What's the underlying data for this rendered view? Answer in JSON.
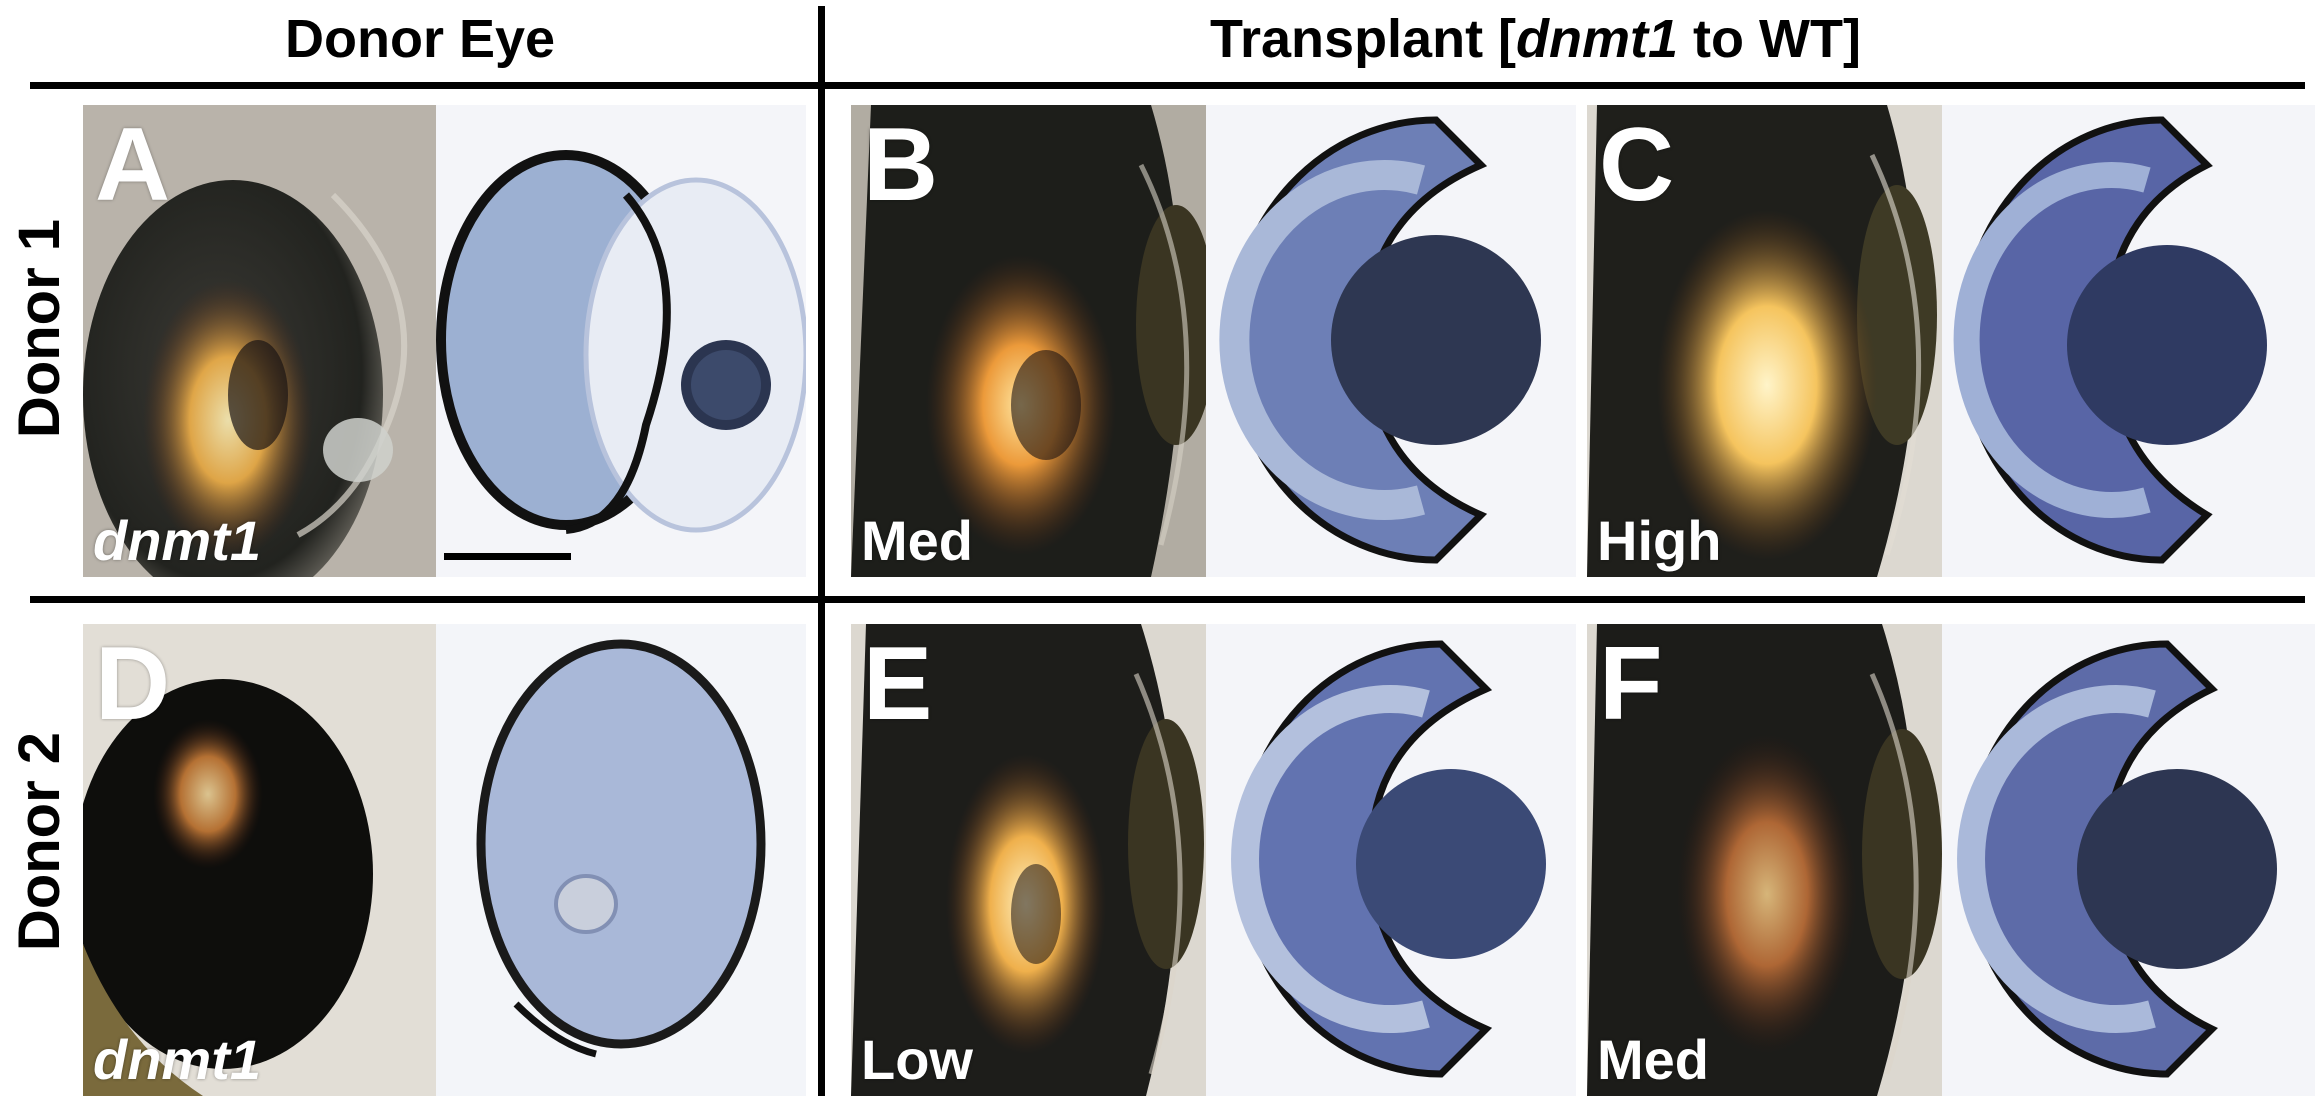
{
  "header": {
    "donor_eye": "Donor Eye",
    "transplant_prefix": "Transplant [",
    "transplant_gene": "dnmt1",
    "transplant_suffix": " to WT]"
  },
  "rows": [
    {
      "label": "Donor 1",
      "panels": [
        {
          "letter": "A",
          "corner_label": "dnmt1",
          "corner_italic": true
        },
        {
          "letter": "B",
          "corner_label": "Med"
        },
        {
          "letter": "C",
          "corner_label": "High"
        }
      ]
    },
    {
      "label": "Donor 2",
      "panels": [
        {
          "letter": "D",
          "corner_label": "dnmt1",
          "corner_italic": true
        },
        {
          "letter": "E",
          "corner_label": "Low"
        },
        {
          "letter": "F",
          "corner_label": "Med"
        }
      ]
    }
  ],
  "colors": {
    "ink": "#000000",
    "histology_blue": "#5f6fa8",
    "lens_dark": "#2b3550",
    "photo_grey": "#b9b3aa",
    "iridophore_gold": "#f2b24a"
  }
}
